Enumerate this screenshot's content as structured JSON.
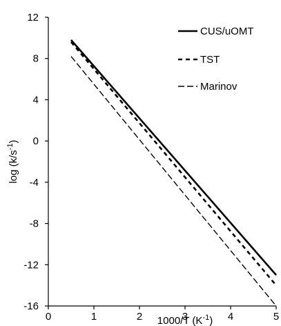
{
  "chart_data": {
    "type": "line",
    "title": "",
    "xlabel": "1000/T (K",
    "xlabel_sup": "-1",
    "xlabel_close": ")",
    "ylabel": "log (k/s",
    "ylabel_sup": "-1",
    "ylabel_close": ")",
    "xlim": [
      0,
      5
    ],
    "ylim": [
      -16,
      12
    ],
    "xticks": [
      "0",
      "1",
      "2",
      "3",
      "4",
      "5"
    ],
    "yticks": [
      "12",
      "8",
      "4",
      "0",
      "-4",
      "-8",
      "-12",
      "-16"
    ],
    "grid": false,
    "legend_position": "top-right",
    "series": [
      {
        "name": "CUS/uOMT",
        "style": "solid",
        "color": "#000000",
        "x": [
          0.5,
          5.0
        ],
        "y": [
          9.8,
          -13.0
        ]
      },
      {
        "name": "TST",
        "style": "short-dash",
        "color": "#000000",
        "x": [
          0.5,
          5.0
        ],
        "y": [
          9.6,
          -14.0
        ]
      },
      {
        "name": "Marinov",
        "style": "long-dash",
        "color": "#000000",
        "x": [
          0.5,
          5.0
        ],
        "y": [
          8.2,
          -16.0
        ]
      }
    ]
  }
}
